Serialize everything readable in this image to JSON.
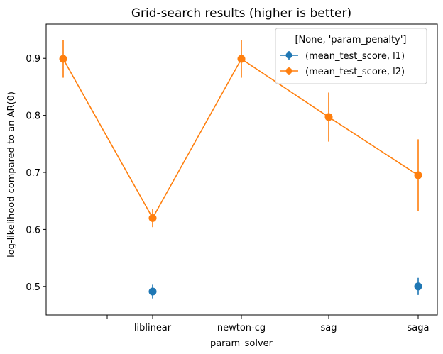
{
  "chart_data": {
    "type": "line",
    "title": "Grid-search results (higher is better)",
    "xlabel": "param_solver",
    "ylabel": "log-likelihood compared to an AR(0)",
    "categories": [
      "",
      "liblinear",
      "newton-cg",
      "sag",
      "saga"
    ],
    "ylim": [
      0.45,
      0.96
    ],
    "yticks": [
      "0.5",
      "0.6",
      "0.7",
      "0.8",
      "0.9"
    ],
    "legend": {
      "title": "[None, 'param_penalty']",
      "placement": "upper right"
    },
    "series": [
      {
        "name": "(mean_test_score, l1)",
        "color": "#1f77b4",
        "values": [
          null,
          0.491,
          null,
          null,
          0.5
        ],
        "errors": [
          null,
          0.012,
          null,
          null,
          0.015
        ]
      },
      {
        "name": "(mean_test_score, l2)",
        "color": "#ff7f0e",
        "values": [
          0.899,
          0.62,
          0.899,
          0.797,
          0.695
        ],
        "errors": [
          0.033,
          0.016,
          0.033,
          0.043,
          0.063
        ]
      }
    ],
    "grid": false
  }
}
